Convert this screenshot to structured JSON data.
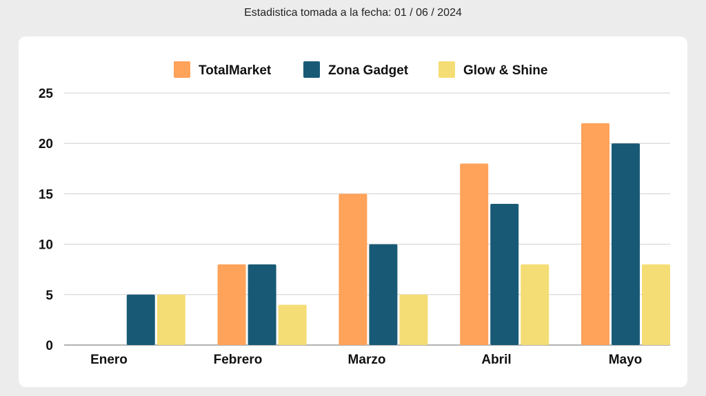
{
  "header": {
    "subtitle": "Estadistica tomada a la fecha: 01 / 06 / 2024"
  },
  "chart_data": {
    "type": "bar",
    "title": "",
    "xlabel": "",
    "ylabel": "",
    "categories": [
      "Enero",
      "Febrero",
      "Marzo",
      "Abril",
      "Mayo"
    ],
    "series": [
      {
        "name": "TotalMarket",
        "color": "#ffa25a",
        "values": [
          0,
          8,
          15,
          18,
          22
        ]
      },
      {
        "name": "Zona Gadget",
        "color": "#185a76",
        "values": [
          5,
          8,
          10,
          14,
          20
        ]
      },
      {
        "name": "Glow & Shine",
        "color": "#f4dd75",
        "values": [
          5,
          4,
          5,
          8,
          8
        ]
      }
    ],
    "ylim": [
      0,
      25
    ],
    "yticks": [
      "0",
      "5",
      "10",
      "15",
      "20",
      "25"
    ],
    "grid": true,
    "legend_position": "top-center"
  }
}
